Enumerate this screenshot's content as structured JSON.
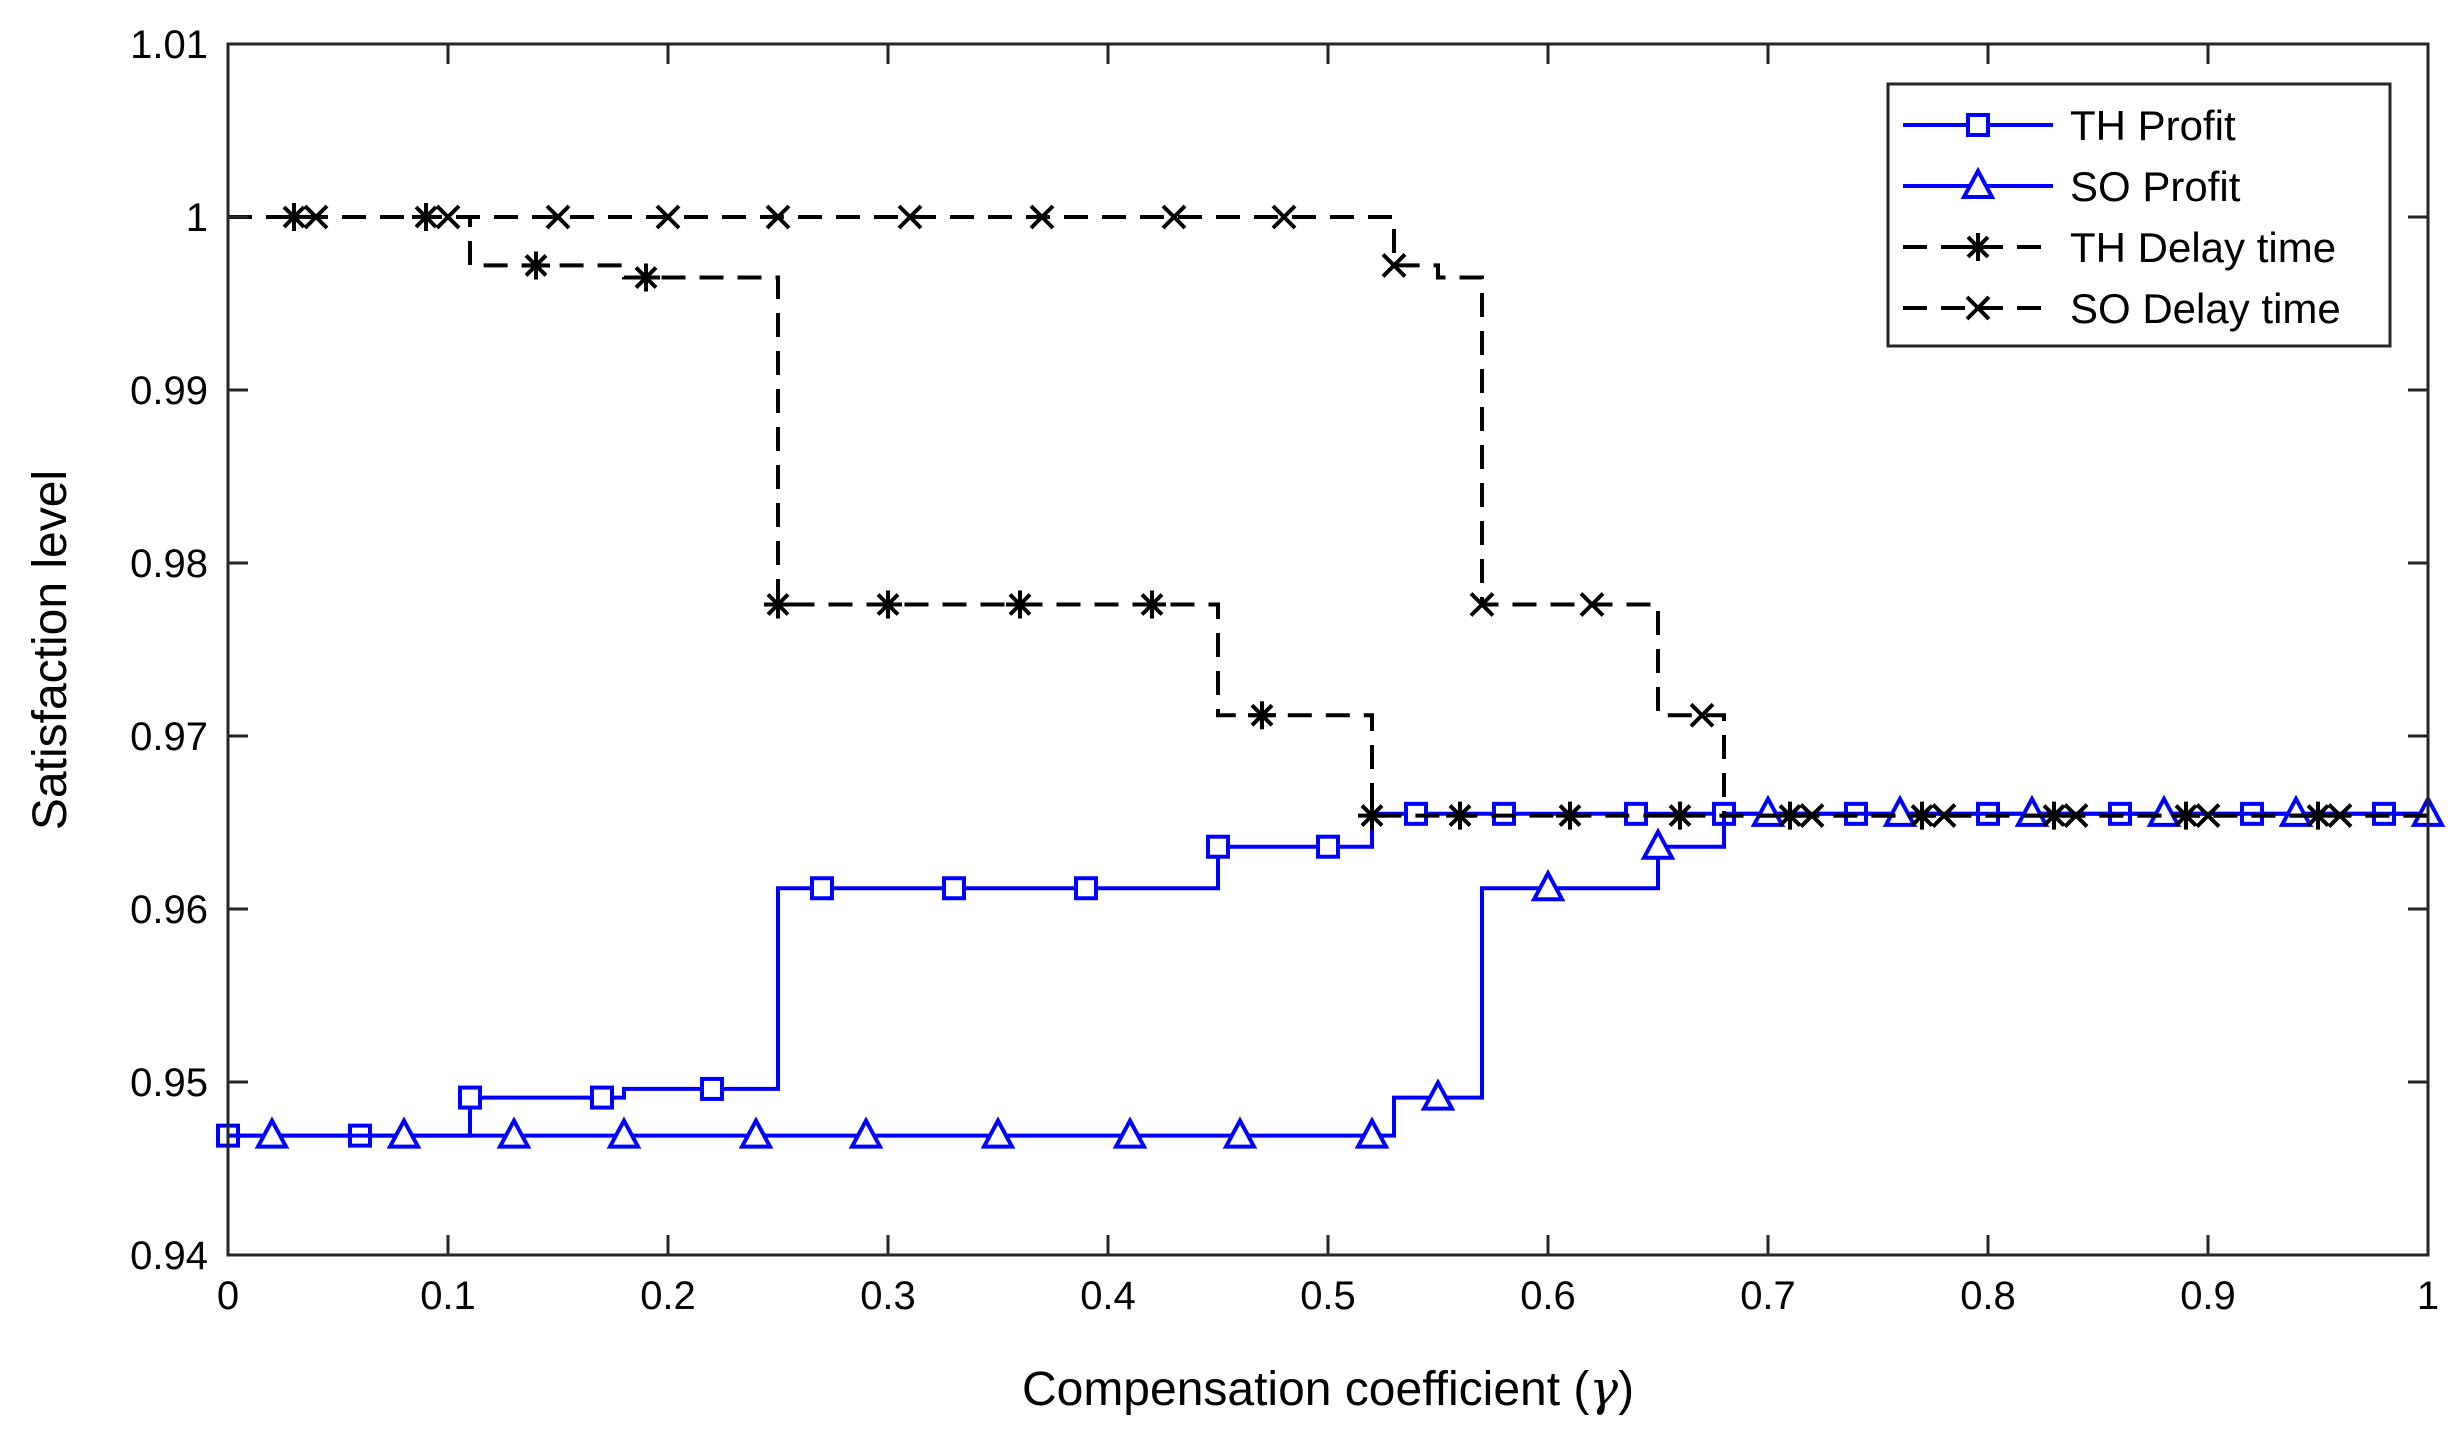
{
  "chart_data": {
    "type": "line",
    "step": true,
    "title": "",
    "xlabel_main": "Compensation coefficient (",
    "xlabel_symbol": "γ",
    "xlabel_close": ")",
    "ylabel": "Satisfaction level",
    "xlim": [
      0,
      1
    ],
    "ylim": [
      0.94,
      1.01
    ],
    "xticks": [
      0,
      0.1,
      0.2,
      0.3,
      0.4,
      0.5,
      0.6,
      0.7,
      0.8,
      0.9,
      1
    ],
    "xtick_labels": [
      "0",
      "0.1",
      "0.2",
      "0.3",
      "0.4",
      "0.5",
      "0.6",
      "0.7",
      "0.8",
      "0.9",
      "1"
    ],
    "yticks": [
      0.94,
      0.95,
      0.96,
      0.97,
      0.98,
      0.99,
      1,
      1.01
    ],
    "ytick_labels": [
      "0.94",
      "0.95",
      "0.96",
      "0.97",
      "0.98",
      "0.99",
      "1",
      "1.01"
    ],
    "grid": false,
    "legend_position": "top-right",
    "series": [
      {
        "name": "TH Profit",
        "color": "#0000ff",
        "dash": "solid",
        "marker": "square",
        "steps": [
          [
            0,
            0.9469
          ],
          [
            0.11,
            0.9491
          ],
          [
            0.18,
            0.9496
          ],
          [
            0.25,
            0.9612
          ],
          [
            0.45,
            0.9636
          ],
          [
            0.52,
            0.9655
          ],
          [
            1,
            0.9655
          ]
        ],
        "markers_x": [
          0,
          0.06,
          0.11,
          0.17,
          0.22,
          0.27,
          0.33,
          0.39,
          0.45,
          0.5,
          0.54,
          0.58,
          0.64,
          0.68,
          0.74,
          0.8,
          0.86,
          0.92,
          0.98
        ]
      },
      {
        "name": "SO Profit",
        "color": "#0000ff",
        "dash": "solid",
        "marker": "triangle",
        "steps": [
          [
            0,
            0.9469
          ],
          [
            0.53,
            0.9491
          ],
          [
            0.57,
            0.9612
          ],
          [
            0.65,
            0.9636
          ],
          [
            0.68,
            0.9655
          ],
          [
            1,
            0.9655
          ]
        ],
        "markers_x": [
          0.02,
          0.08,
          0.13,
          0.18,
          0.24,
          0.29,
          0.35,
          0.41,
          0.46,
          0.52,
          0.55,
          0.6,
          0.65,
          0.7,
          0.76,
          0.82,
          0.88,
          0.94,
          1
        ]
      },
      {
        "name": "TH Delay time",
        "color": "#000000",
        "dash": "dashed",
        "marker": "asterisk",
        "steps": [
          [
            0,
            1.0
          ],
          [
            0.11,
            0.9972
          ],
          [
            0.18,
            0.9965
          ],
          [
            0.25,
            0.9776
          ],
          [
            0.45,
            0.9712
          ],
          [
            0.52,
            0.9654
          ],
          [
            1,
            0.9654
          ]
        ],
        "markers_x": [
          0.03,
          0.09,
          0.14,
          0.19,
          0.25,
          0.3,
          0.36,
          0.42,
          0.47,
          0.52,
          0.56,
          0.61,
          0.66,
          0.71,
          0.77,
          0.83,
          0.89,
          0.95
        ]
      },
      {
        "name": "SO Delay time",
        "color": "#000000",
        "dash": "dashed",
        "marker": "cross",
        "steps": [
          [
            0,
            1.0
          ],
          [
            0.53,
            0.9972
          ],
          [
            0.55,
            0.9965
          ],
          [
            0.57,
            0.9776
          ],
          [
            0.65,
            0.9712
          ],
          [
            0.68,
            0.9654
          ],
          [
            1,
            0.9654
          ]
        ],
        "markers_x": [
          0.04,
          0.1,
          0.15,
          0.2,
          0.25,
          0.31,
          0.37,
          0.43,
          0.48,
          0.53,
          0.57,
          0.62,
          0.67,
          0.72,
          0.78,
          0.84,
          0.9,
          0.96
        ]
      }
    ]
  }
}
